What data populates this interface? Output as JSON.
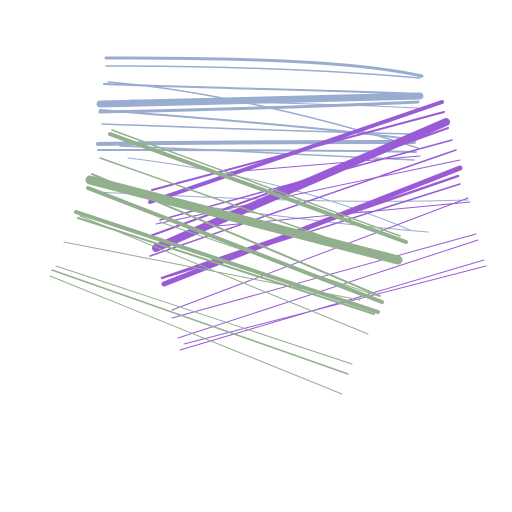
{
  "colors": {
    "background": "#ffffff",
    "blue_group": "#9aaccf",
    "green_group": "#93b08e",
    "purple_group": "#9a5bd6"
  },
  "groups": [
    {
      "key": "blue",
      "color_key": "blue_group",
      "bundle": "horizontal-band"
    },
    {
      "key": "green",
      "color_key": "green_group",
      "bundle": "diagonal-down"
    },
    {
      "key": "purple",
      "color_key": "purple_group",
      "bundle": "diagonal-up"
    }
  ]
}
